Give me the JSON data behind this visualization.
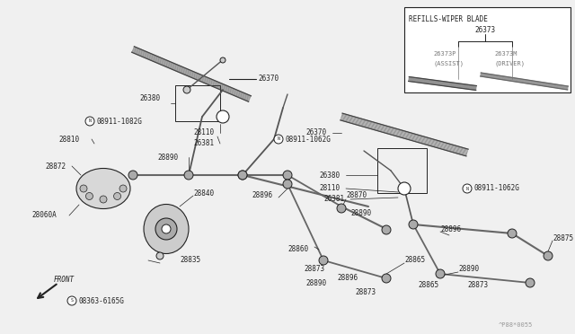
{
  "bg_color": "#f0f0f0",
  "line_color": "#222222",
  "text_color": "#222222",
  "gray_color": "#777777",
  "fig_width": 6.4,
  "fig_height": 3.72,
  "dpi": 100,
  "watermark": "^P88*0055",
  "refills_label": "REFILLS-WIPER BLADE",
  "refills_code": "26373",
  "assist_code": "26373P",
  "assist_label": "(ASSIST)",
  "driver_code": "26373M",
  "driver_label": "(DRIVER)",
  "front_label": "FRONT",
  "front_code": "08363-6165G"
}
